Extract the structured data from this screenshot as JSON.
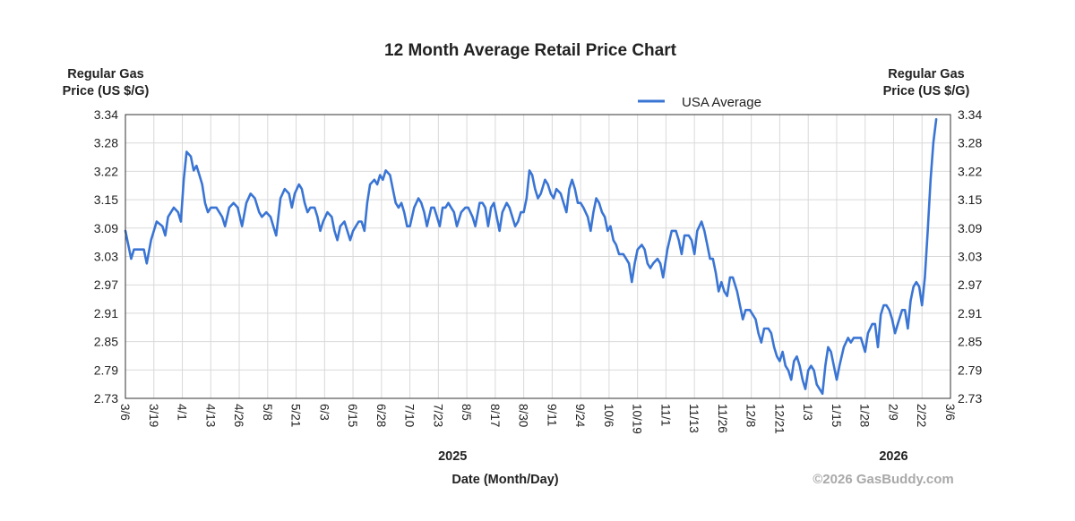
{
  "chart_data": {
    "type": "line",
    "title": "12 Month Average Retail Price Chart",
    "ylabel_left": [
      "Regular Gas",
      "Price (US $/G)"
    ],
    "ylabel_right": [
      "Regular Gas",
      "Price (US $/G)"
    ],
    "xlabel": "Date (Month/Day)",
    "credit": "©2026 GasBuddy.com",
    "ylim": [
      2.73,
      3.34
    ],
    "y_ticks": [
      "3.34",
      "3.28",
      "3.22",
      "3.15",
      "3.09",
      "3.03",
      "2.97",
      "2.91",
      "2.85",
      "2.79",
      "2.73"
    ],
    "x_ticks": [
      "3/6",
      "3/19",
      "4/1",
      "4/13",
      "4/26",
      "5/8",
      "5/21",
      "6/3",
      "6/15",
      "6/28",
      "7/10",
      "7/23",
      "8/5",
      "8/17",
      "8/30",
      "9/11",
      "9/24",
      "10/6",
      "10/19",
      "11/1",
      "11/13",
      "11/26",
      "12/8",
      "12/21",
      "1/3",
      "1/15",
      "1/28",
      "2/9",
      "2/22",
      "3/6"
    ],
    "years": [
      {
        "label": "2025",
        "at_tick": 11.5
      },
      {
        "label": "2026",
        "at_tick": 27
      }
    ],
    "grid": true,
    "legend_position": "top-center-right",
    "series": [
      {
        "name": "USA Average",
        "color": "#3a75d4",
        "points": [
          [
            0,
            3.09
          ],
          [
            0.1,
            3.06
          ],
          [
            0.2,
            3.03
          ],
          [
            0.3,
            3.05
          ],
          [
            0.5,
            3.05
          ],
          [
            0.65,
            3.05
          ],
          [
            0.75,
            3.02
          ],
          [
            0.9,
            3.07
          ],
          [
            1.1,
            3.11
          ],
          [
            1.3,
            3.1
          ],
          [
            1.4,
            3.08
          ],
          [
            1.5,
            3.12
          ],
          [
            1.7,
            3.14
          ],
          [
            1.85,
            3.13
          ],
          [
            1.95,
            3.11
          ],
          [
            2.05,
            3.2
          ],
          [
            2.15,
            3.26
          ],
          [
            2.3,
            3.25
          ],
          [
            2.4,
            3.22
          ],
          [
            2.5,
            3.23
          ],
          [
            2.6,
            3.21
          ],
          [
            2.7,
            3.19
          ],
          [
            2.8,
            3.15
          ],
          [
            2.9,
            3.13
          ],
          [
            3.0,
            3.14
          ],
          [
            3.2,
            3.14
          ],
          [
            3.4,
            3.12
          ],
          [
            3.5,
            3.1
          ],
          [
            3.65,
            3.14
          ],
          [
            3.8,
            3.15
          ],
          [
            3.95,
            3.14
          ],
          [
            4.1,
            3.1
          ],
          [
            4.25,
            3.15
          ],
          [
            4.4,
            3.17
          ],
          [
            4.55,
            3.16
          ],
          [
            4.7,
            3.13
          ],
          [
            4.8,
            3.12
          ],
          [
            4.95,
            3.13
          ],
          [
            5.1,
            3.12
          ],
          [
            5.2,
            3.1
          ],
          [
            5.3,
            3.08
          ],
          [
            5.45,
            3.16
          ],
          [
            5.6,
            3.18
          ],
          [
            5.75,
            3.17
          ],
          [
            5.85,
            3.14
          ],
          [
            5.95,
            3.17
          ],
          [
            6.1,
            3.19
          ],
          [
            6.2,
            3.18
          ],
          [
            6.3,
            3.15
          ],
          [
            6.4,
            3.13
          ],
          [
            6.5,
            3.14
          ],
          [
            6.65,
            3.14
          ],
          [
            6.75,
            3.12
          ],
          [
            6.85,
            3.09
          ],
          [
            6.95,
            3.11
          ],
          [
            7.1,
            3.13
          ],
          [
            7.25,
            3.12
          ],
          [
            7.35,
            3.09
          ],
          [
            7.45,
            3.07
          ],
          [
            7.55,
            3.1
          ],
          [
            7.7,
            3.11
          ],
          [
            7.8,
            3.09
          ],
          [
            7.9,
            3.07
          ],
          [
            8.0,
            3.09
          ],
          [
            8.2,
            3.11
          ],
          [
            8.3,
            3.11
          ],
          [
            8.4,
            3.09
          ],
          [
            8.5,
            3.15
          ],
          [
            8.6,
            3.19
          ],
          [
            8.75,
            3.2
          ],
          [
            8.85,
            3.19
          ],
          [
            8.95,
            3.21
          ],
          [
            9.05,
            3.2
          ],
          [
            9.15,
            3.22
          ],
          [
            9.3,
            3.21
          ],
          [
            9.4,
            3.18
          ],
          [
            9.5,
            3.15
          ],
          [
            9.6,
            3.14
          ],
          [
            9.7,
            3.15
          ],
          [
            9.8,
            3.13
          ],
          [
            9.9,
            3.1
          ],
          [
            10.0,
            3.1
          ],
          [
            10.15,
            3.14
          ],
          [
            10.3,
            3.16
          ],
          [
            10.4,
            3.15
          ],
          [
            10.5,
            3.13
          ],
          [
            10.6,
            3.1
          ],
          [
            10.75,
            3.14
          ],
          [
            10.85,
            3.14
          ],
          [
            10.95,
            3.12
          ],
          [
            11.05,
            3.1
          ],
          [
            11.15,
            3.14
          ],
          [
            11.25,
            3.14
          ],
          [
            11.35,
            3.15
          ],
          [
            11.45,
            3.14
          ],
          [
            11.55,
            3.13
          ],
          [
            11.65,
            3.1
          ],
          [
            11.8,
            3.13
          ],
          [
            11.95,
            3.14
          ],
          [
            12.05,
            3.14
          ],
          [
            12.2,
            3.12
          ],
          [
            12.3,
            3.1
          ],
          [
            12.45,
            3.15
          ],
          [
            12.55,
            3.15
          ],
          [
            12.65,
            3.14
          ],
          [
            12.75,
            3.1
          ],
          [
            12.85,
            3.14
          ],
          [
            12.95,
            3.15
          ],
          [
            13.05,
            3.12
          ],
          [
            13.15,
            3.09
          ],
          [
            13.25,
            3.13
          ],
          [
            13.4,
            3.15
          ],
          [
            13.5,
            3.14
          ],
          [
            13.6,
            3.12
          ],
          [
            13.7,
            3.1
          ],
          [
            13.8,
            3.11
          ],
          [
            13.9,
            3.13
          ],
          [
            14.0,
            3.13
          ],
          [
            14.1,
            3.16
          ],
          [
            14.2,
            3.22
          ],
          [
            14.3,
            3.21
          ],
          [
            14.4,
            3.18
          ],
          [
            14.5,
            3.16
          ],
          [
            14.6,
            3.17
          ],
          [
            14.75,
            3.2
          ],
          [
            14.85,
            3.19
          ],
          [
            14.95,
            3.17
          ],
          [
            15.05,
            3.16
          ],
          [
            15.15,
            3.18
          ],
          [
            15.3,
            3.17
          ],
          [
            15.4,
            3.15
          ],
          [
            15.5,
            3.13
          ],
          [
            15.6,
            3.18
          ],
          [
            15.7,
            3.2
          ],
          [
            15.8,
            3.18
          ],
          [
            15.9,
            3.15
          ],
          [
            16.0,
            3.15
          ],
          [
            16.1,
            3.14
          ],
          [
            16.25,
            3.12
          ],
          [
            16.35,
            3.09
          ],
          [
            16.45,
            3.13
          ],
          [
            16.55,
            3.16
          ],
          [
            16.65,
            3.15
          ],
          [
            16.75,
            3.13
          ],
          [
            16.85,
            3.12
          ],
          [
            16.95,
            3.09
          ],
          [
            17.05,
            3.1
          ],
          [
            17.15,
            3.07
          ],
          [
            17.25,
            3.06
          ],
          [
            17.35,
            3.04
          ],
          [
            17.5,
            3.04
          ],
          [
            17.6,
            3.03
          ],
          [
            17.7,
            3.02
          ],
          [
            17.8,
            2.98
          ],
          [
            17.9,
            3.02
          ],
          [
            18.0,
            3.05
          ],
          [
            18.15,
            3.06
          ],
          [
            18.25,
            3.05
          ],
          [
            18.35,
            3.02
          ],
          [
            18.45,
            3.01
          ],
          [
            18.55,
            3.02
          ],
          [
            18.7,
            3.03
          ],
          [
            18.8,
            3.02
          ],
          [
            18.9,
            2.99
          ],
          [
            19.05,
            3.05
          ],
          [
            19.2,
            3.09
          ],
          [
            19.35,
            3.09
          ],
          [
            19.45,
            3.07
          ],
          [
            19.55,
            3.04
          ],
          [
            19.65,
            3.08
          ],
          [
            19.8,
            3.08
          ],
          [
            19.9,
            3.07
          ],
          [
            20.0,
            3.04
          ],
          [
            20.1,
            3.09
          ],
          [
            20.25,
            3.11
          ],
          [
            20.35,
            3.09
          ],
          [
            20.45,
            3.06
          ],
          [
            20.55,
            3.03
          ],
          [
            20.65,
            3.03
          ],
          [
            20.75,
            3.0
          ],
          [
            20.85,
            2.96
          ],
          [
            20.95,
            2.98
          ],
          [
            21.05,
            2.96
          ],
          [
            21.15,
            2.95
          ],
          [
            21.25,
            2.99
          ],
          [
            21.35,
            2.99
          ],
          [
            21.5,
            2.96
          ],
          [
            21.6,
            2.93
          ],
          [
            21.7,
            2.9
          ],
          [
            21.8,
            2.92
          ],
          [
            21.95,
            2.92
          ],
          [
            22.05,
            2.91
          ],
          [
            22.15,
            2.9
          ],
          [
            22.25,
            2.87
          ],
          [
            22.35,
            2.85
          ],
          [
            22.45,
            2.88
          ],
          [
            22.6,
            2.88
          ],
          [
            22.7,
            2.87
          ],
          [
            22.8,
            2.84
          ],
          [
            22.9,
            2.82
          ],
          [
            23.0,
            2.81
          ],
          [
            23.1,
            2.83
          ],
          [
            23.2,
            2.8
          ],
          [
            23.3,
            2.79
          ],
          [
            23.4,
            2.77
          ],
          [
            23.5,
            2.81
          ],
          [
            23.6,
            2.82
          ],
          [
            23.7,
            2.8
          ],
          [
            23.8,
            2.77
          ],
          [
            23.9,
            2.75
          ],
          [
            24.0,
            2.79
          ],
          [
            24.1,
            2.8
          ],
          [
            24.2,
            2.79
          ],
          [
            24.3,
            2.76
          ],
          [
            24.4,
            2.75
          ],
          [
            24.5,
            2.74
          ],
          [
            24.6,
            2.8
          ],
          [
            24.7,
            2.84
          ],
          [
            24.8,
            2.83
          ],
          [
            24.9,
            2.8
          ],
          [
            25.0,
            2.77
          ],
          [
            25.1,
            2.8
          ],
          [
            25.25,
            2.84
          ],
          [
            25.4,
            2.86
          ],
          [
            25.5,
            2.85
          ],
          [
            25.6,
            2.86
          ],
          [
            25.75,
            2.86
          ],
          [
            25.85,
            2.86
          ],
          [
            26.0,
            2.83
          ],
          [
            26.1,
            2.87
          ],
          [
            26.25,
            2.89
          ],
          [
            26.35,
            2.89
          ],
          [
            26.45,
            2.84
          ],
          [
            26.55,
            2.91
          ],
          [
            26.65,
            2.93
          ],
          [
            26.75,
            2.93
          ],
          [
            26.85,
            2.92
          ],
          [
            26.95,
            2.9
          ],
          [
            27.05,
            2.87
          ],
          [
            27.15,
            2.89
          ],
          [
            27.3,
            2.92
          ],
          [
            27.4,
            2.92
          ],
          [
            27.5,
            2.88
          ],
          [
            27.6,
            2.94
          ],
          [
            27.7,
            2.97
          ],
          [
            27.8,
            2.98
          ],
          [
            27.9,
            2.97
          ],
          [
            28.0,
            2.93
          ],
          [
            28.1,
            2.99
          ],
          [
            28.2,
            3.09
          ],
          [
            28.3,
            3.2
          ],
          [
            28.4,
            3.28
          ],
          [
            28.5,
            3.33
          ]
        ]
      }
    ]
  }
}
